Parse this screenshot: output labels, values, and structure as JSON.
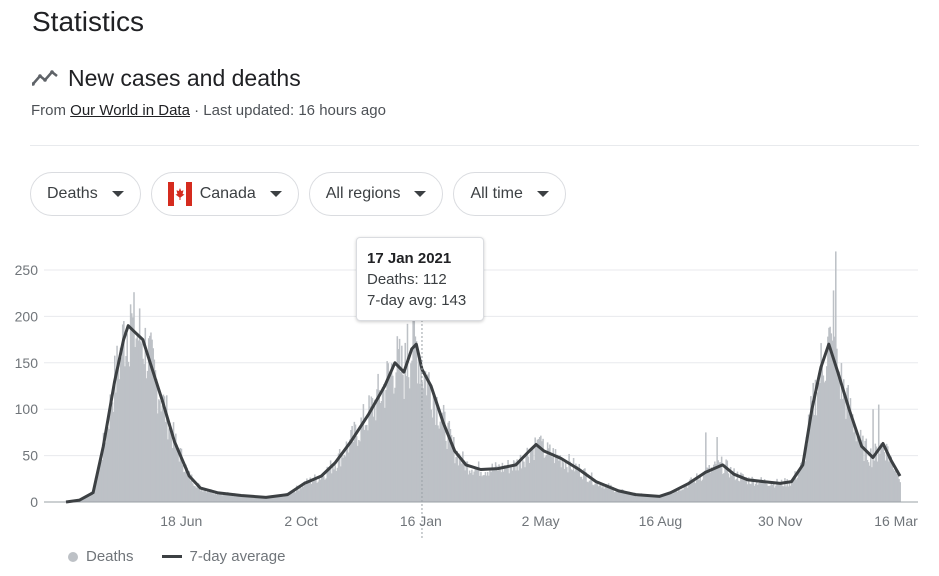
{
  "page_title": "Statistics",
  "section": {
    "title": "New cases and deaths",
    "source_prefix": "From ",
    "source_link": "Our World in Data",
    "source_suffix": " · Last updated: 16 hours ago"
  },
  "filters": {
    "metric": "Deaths",
    "country": "Canada",
    "region": "All regions",
    "time": "All time"
  },
  "tooltip": {
    "date": "17 Jan 2021",
    "deaths_line": "Deaths: 112",
    "avg_line": "7-day avg: 143"
  },
  "legend": {
    "series1": "Deaths",
    "series2": "7-day average"
  },
  "colors": {
    "bars": "#bdc1c6",
    "line": "#3c4043",
    "grid": "#e8eaed",
    "flag_red": "#d52b1e"
  },
  "chart_data": {
    "type": "bar",
    "x_range": [
      "2020-03-08",
      "2022-03-16"
    ],
    "ylim": [
      0,
      260
    ],
    "y_ticks": [
      0,
      50,
      100,
      150,
      200,
      250
    ],
    "x_tick_labels": [
      "18 Jun",
      "2 Oct",
      "16 Jan",
      "2 May",
      "16 Aug",
      "30 Nov",
      "16 Mar"
    ],
    "x_tick_dates": [
      "2020-06-18",
      "2020-10-02",
      "2021-01-16",
      "2021-05-02",
      "2021-08-16",
      "2021-11-30",
      "2022-03-16"
    ],
    "series": [
      {
        "name": "7-day average",
        "kind": "line",
        "points": [
          [
            "2020-03-08",
            0
          ],
          [
            "2020-03-20",
            2
          ],
          [
            "2020-04-01",
            10
          ],
          [
            "2020-04-10",
            60
          ],
          [
            "2020-04-20",
            130
          ],
          [
            "2020-04-28",
            175
          ],
          [
            "2020-05-02",
            190
          ],
          [
            "2020-05-08",
            183
          ],
          [
            "2020-05-15",
            175
          ],
          [
            "2020-05-22",
            148
          ],
          [
            "2020-06-01",
            110
          ],
          [
            "2020-06-12",
            65
          ],
          [
            "2020-06-25",
            28
          ],
          [
            "2020-07-05",
            15
          ],
          [
            "2020-07-20",
            10
          ],
          [
            "2020-08-10",
            7
          ],
          [
            "2020-09-01",
            5
          ],
          [
            "2020-09-20",
            8
          ],
          [
            "2020-10-05",
            20
          ],
          [
            "2020-10-20",
            28
          ],
          [
            "2020-11-01",
            42
          ],
          [
            "2020-11-15",
            65
          ],
          [
            "2020-12-01",
            95
          ],
          [
            "2020-12-15",
            125
          ],
          [
            "2020-12-24",
            150
          ],
          [
            "2021-01-01",
            140
          ],
          [
            "2021-01-08",
            165
          ],
          [
            "2021-01-12",
            170
          ],
          [
            "2021-01-17",
            143
          ],
          [
            "2021-01-25",
            125
          ],
          [
            "2021-02-05",
            85
          ],
          [
            "2021-02-15",
            55
          ],
          [
            "2021-02-25",
            40
          ],
          [
            "2021-03-10",
            35
          ],
          [
            "2021-03-25",
            36
          ],
          [
            "2021-04-10",
            40
          ],
          [
            "2021-04-22",
            55
          ],
          [
            "2021-04-28",
            62
          ],
          [
            "2021-05-05",
            55
          ],
          [
            "2021-05-20",
            47
          ],
          [
            "2021-06-05",
            35
          ],
          [
            "2021-06-20",
            22
          ],
          [
            "2021-07-10",
            12
          ],
          [
            "2021-07-25",
            8
          ],
          [
            "2021-08-15",
            6
          ],
          [
            "2021-08-25",
            10
          ],
          [
            "2021-09-10",
            20
          ],
          [
            "2021-09-25",
            32
          ],
          [
            "2021-10-10",
            40
          ],
          [
            "2021-10-20",
            30
          ],
          [
            "2021-11-01",
            24
          ],
          [
            "2021-11-15",
            22
          ],
          [
            "2021-11-30",
            20
          ],
          [
            "2021-12-10",
            22
          ],
          [
            "2021-12-20",
            40
          ],
          [
            "2021-12-28",
            100
          ],
          [
            "2022-01-05",
            145
          ],
          [
            "2022-01-12",
            170
          ],
          [
            "2022-01-20",
            140
          ],
          [
            "2022-01-30",
            100
          ],
          [
            "2022-02-10",
            60
          ],
          [
            "2022-02-20",
            48
          ],
          [
            "2022-03-01",
            63
          ],
          [
            "2022-03-08",
            45
          ],
          [
            "2022-03-16",
            28
          ]
        ]
      },
      {
        "name": "Deaths",
        "kind": "bar",
        "peaks": [
          [
            "2020-05-04",
            213
          ],
          [
            "2020-04-28",
            195
          ],
          [
            "2021-01-10",
            195
          ],
          [
            "2021-01-04",
            192
          ],
          [
            "2021-05-01",
            70
          ],
          [
            "2021-09-25",
            75
          ],
          [
            "2021-10-05",
            70
          ],
          [
            "2022-01-18",
            270
          ],
          [
            "2022-01-16",
            228
          ],
          [
            "2022-02-20",
            100
          ],
          [
            "2022-02-25",
            105
          ],
          [
            "2022-03-05",
            60
          ]
        ]
      }
    ]
  }
}
